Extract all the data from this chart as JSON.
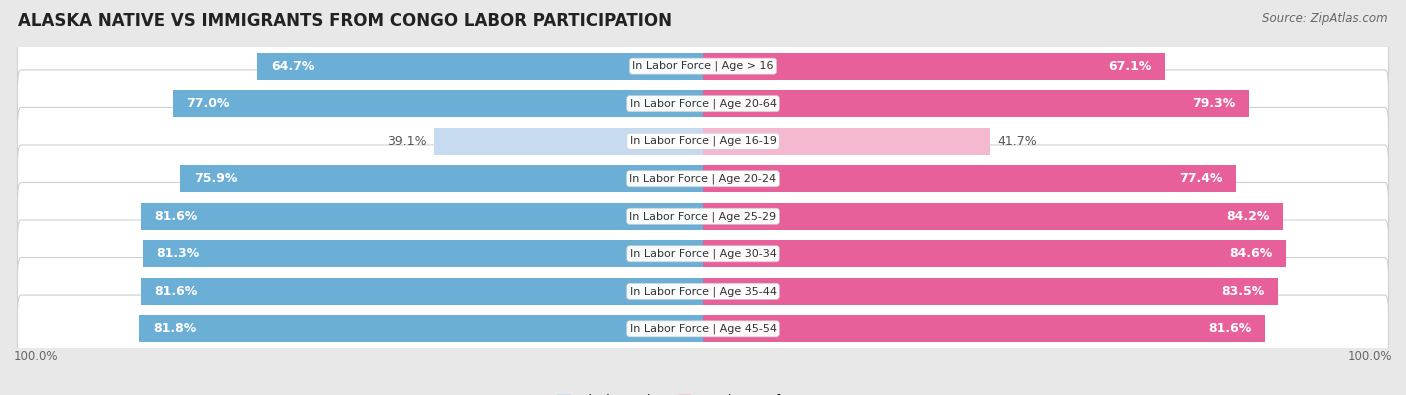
{
  "title": "ALASKA NATIVE VS IMMIGRANTS FROM CONGO LABOR PARTICIPATION",
  "source": "Source: ZipAtlas.com",
  "categories": [
    "In Labor Force | Age > 16",
    "In Labor Force | Age 20-64",
    "In Labor Force | Age 16-19",
    "In Labor Force | Age 20-24",
    "In Labor Force | Age 25-29",
    "In Labor Force | Age 30-34",
    "In Labor Force | Age 35-44",
    "In Labor Force | Age 45-54"
  ],
  "alaska_values": [
    64.7,
    77.0,
    39.1,
    75.9,
    81.6,
    81.3,
    81.6,
    81.8
  ],
  "congo_values": [
    67.1,
    79.3,
    41.7,
    77.4,
    84.2,
    84.6,
    83.5,
    81.6
  ],
  "alaska_color_strong": "#6baed6",
  "alaska_color_light": "#c6dbef",
  "congo_color_strong": "#e8609a",
  "congo_color_light": "#f4b8d1",
  "bg_color": "#e8e8e8",
  "row_bg_color": "#ffffff",
  "row_border_color": "#d0d0d0",
  "bar_height": 0.72,
  "label_color_dark": "#555555",
  "label_color_white": "#ffffff",
  "axis_label_left": "100.0%",
  "axis_label_right": "100.0%",
  "legend_alaska": "Alaska Native",
  "legend_congo": "Immigrants from Congo",
  "title_fontsize": 12,
  "source_fontsize": 8.5,
  "bar_label_fontsize": 9,
  "category_fontsize": 8,
  "axis_fontsize": 8.5,
  "low_threshold": 50
}
